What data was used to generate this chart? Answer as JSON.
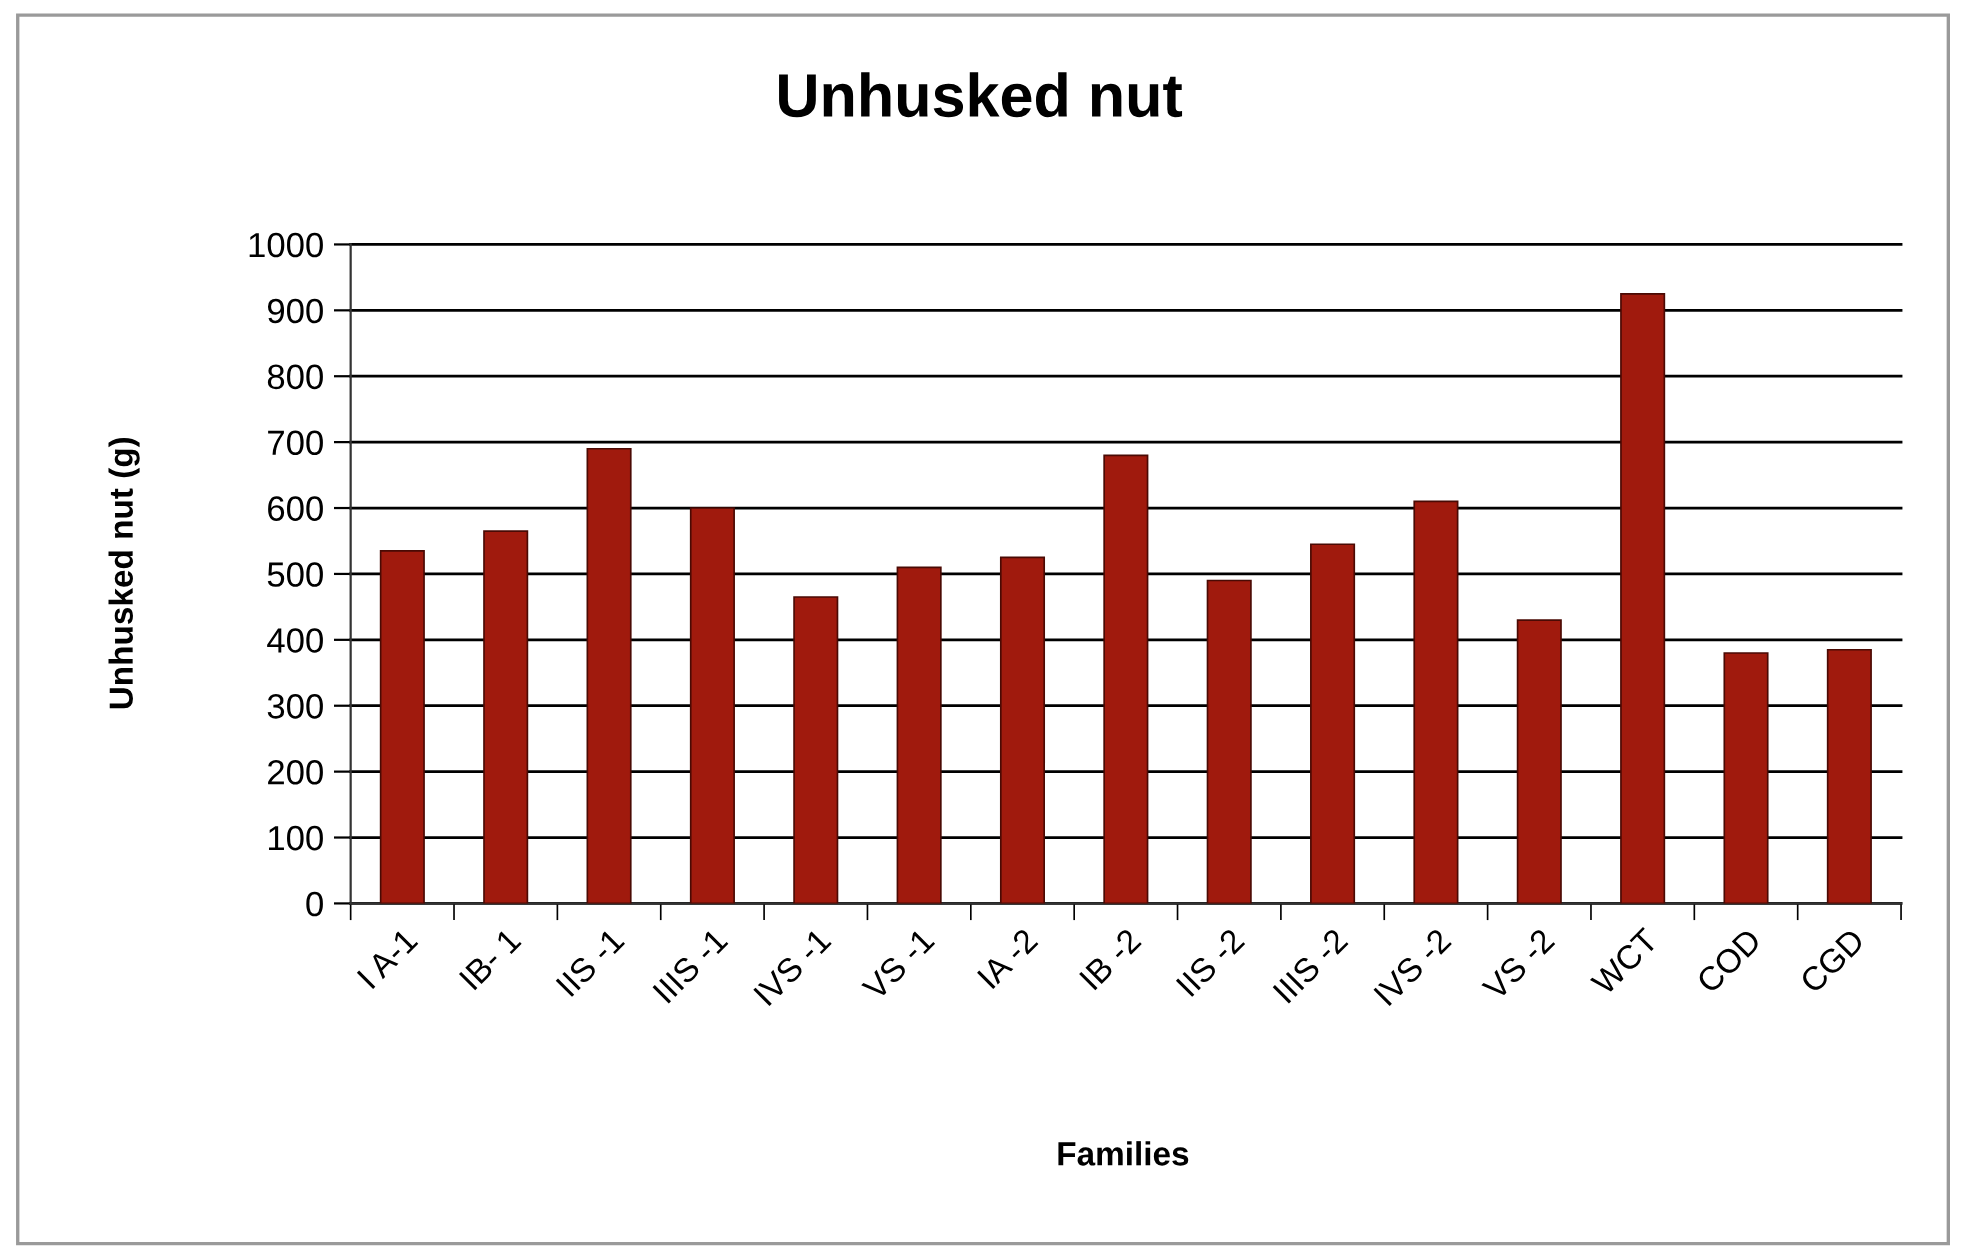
{
  "chart_data": {
    "type": "bar",
    "title": "Unhusked nut",
    "xlabel": "Families",
    "ylabel": "Unhusked nut (g)",
    "categories": [
      "I A-1",
      "IB- 1",
      "IIS -1",
      "IIIS -1",
      "IVS -1",
      "VS -1",
      "IA -2",
      "IB -2",
      "IIS -2",
      "IIIS -2",
      "IVS -2",
      "VS -2",
      "WCT",
      "COD",
      "CGD"
    ],
    "values": [
      535,
      565,
      690,
      600,
      465,
      510,
      525,
      680,
      490,
      545,
      610,
      430,
      925,
      380,
      385
    ],
    "color": "#a01a0d",
    "ylim": [
      0,
      1000
    ],
    "yticks": [
      0,
      100,
      200,
      300,
      400,
      500,
      600,
      700,
      800,
      900,
      1000
    ],
    "grid": "y"
  }
}
